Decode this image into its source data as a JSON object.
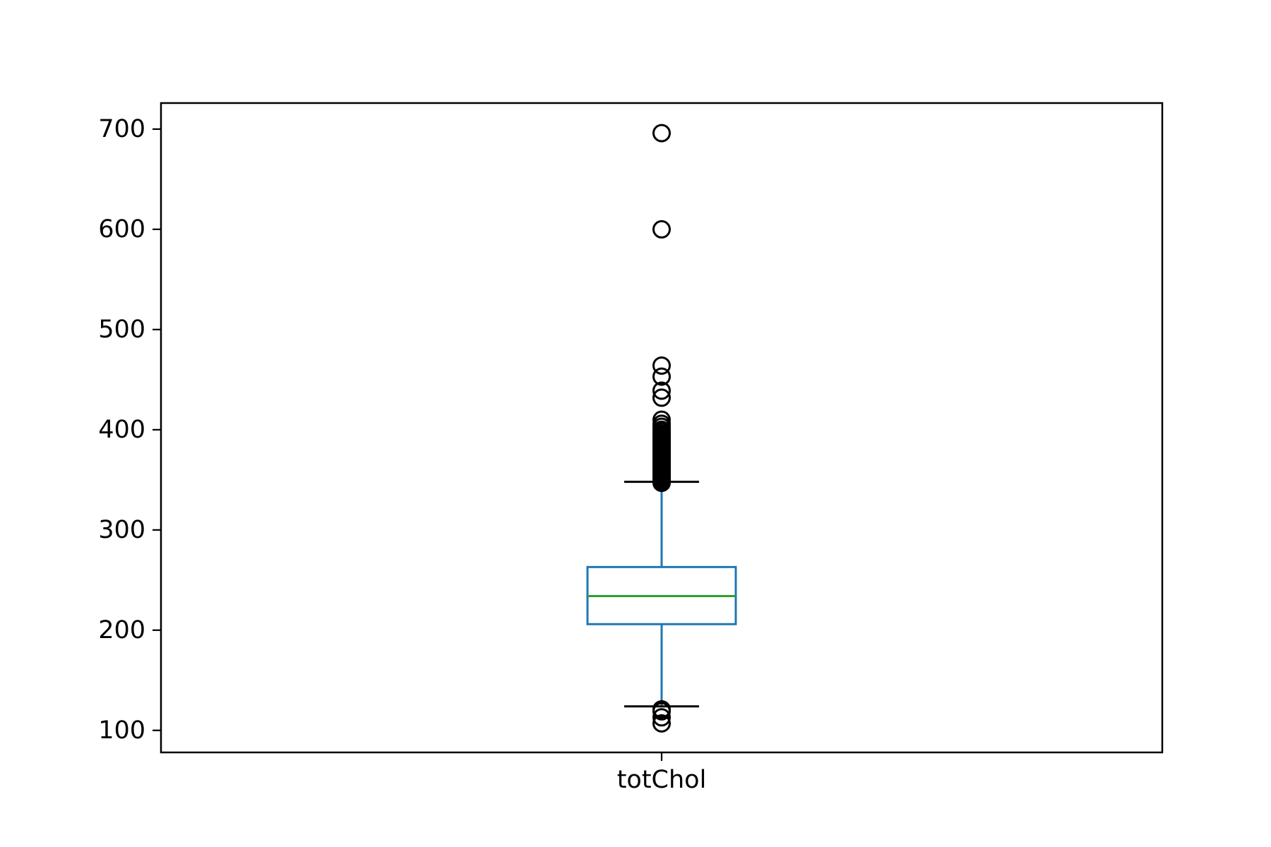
{
  "chart_data": {
    "type": "box",
    "categories": [
      "totChol"
    ],
    "ylim": [
      78,
      726
    ],
    "yticks": [
      100,
      200,
      300,
      400,
      500,
      600,
      700
    ],
    "ytick_labels": [
      "100",
      "200",
      "300",
      "400",
      "500",
      "600",
      "700"
    ],
    "grid": false,
    "boxes": [
      {
        "category": "totChol",
        "whisker_low": 124,
        "q1": 206,
        "median": 234,
        "q3": 263,
        "whisker_high": 348,
        "outliers": [
          107,
          113,
          119,
          121,
          347,
          349,
          351,
          352,
          354,
          355,
          357,
          358,
          360,
          362,
          364,
          366,
          368,
          370,
          372,
          374,
          376,
          378,
          380,
          382,
          384,
          386,
          388,
          390,
          392,
          394,
          396,
          398,
          400,
          403,
          406,
          410,
          432,
          439,
          453,
          464,
          600,
          696
        ]
      }
    ],
    "colors": {
      "box": "#1f77b4",
      "median": "#2ca02c",
      "caps": "#000000",
      "outliers": "#000000",
      "frame": "#000000"
    }
  }
}
